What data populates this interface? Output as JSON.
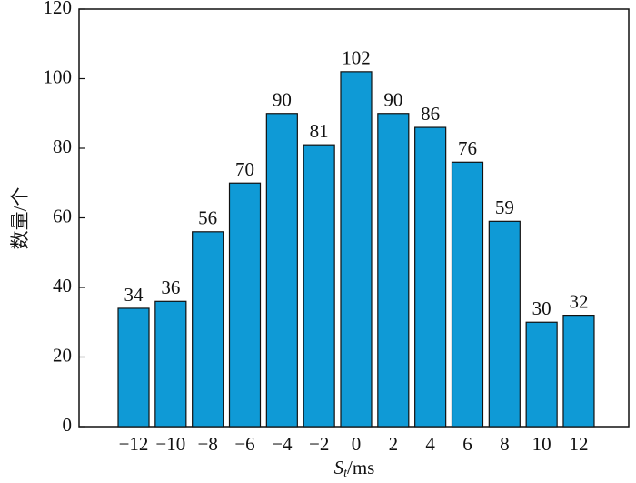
{
  "chart_data": {
    "type": "bar",
    "x_label": {
      "symbol": "S",
      "subscript": "t",
      "unit": "/ms"
    },
    "y_label": "数量/个",
    "categories": [
      "−12",
      "−10",
      "−8",
      "−6",
      "−4",
      "−2",
      "0",
      "2",
      "4",
      "6",
      "8",
      "10",
      "12"
    ],
    "values": [
      34,
      36,
      56,
      70,
      90,
      81,
      102,
      90,
      86,
      76,
      59,
      30,
      32
    ],
    "color": "#0f9ad6",
    "ylim": [
      0,
      120
    ],
    "yticks": [
      0,
      20,
      40,
      60,
      80,
      100,
      120
    ],
    "grid": false
  }
}
